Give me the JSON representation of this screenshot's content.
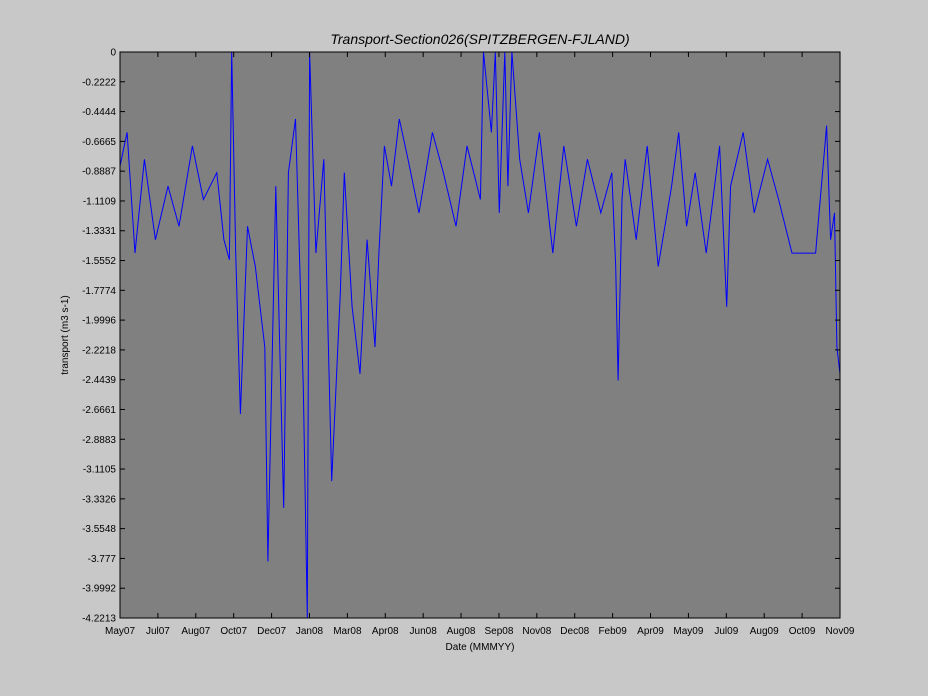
{
  "chart_data": {
    "type": "line",
    "title": "Transport-Section026(SPITZBERGEN-FJLAND)",
    "xlabel": "Date (MMMYY)",
    "ylabel": "transport (m3 s-1)",
    "ylim": [
      -4.2213,
      0
    ],
    "yticks": [
      "0",
      "-0.2222",
      "-0.4444",
      "-0.6665",
      "-0.8887",
      "-1.1109",
      "-1.3331",
      "-1.5552",
      "-1.7774",
      "-1.9996",
      "-2.2218",
      "-2.4439",
      "-2.6661",
      "-2.8883",
      "-3.1105",
      "-3.3326",
      "-3.5548",
      "-3.777",
      "-3.9992",
      "-4.2213"
    ],
    "xlim": [
      "2007-05-01",
      "2009-11-01"
    ],
    "xticks": [
      "May07",
      "Jul07",
      "Aug07",
      "Oct07",
      "Dec07",
      "Jan08",
      "Mar08",
      "Apr08",
      "Jun08",
      "Aug08",
      "Sep08",
      "Nov08",
      "Dec08",
      "Feb09",
      "Apr09",
      "May09",
      "Jul09",
      "Aug09",
      "Oct09",
      "Nov09"
    ],
    "grid": false,
    "series": [
      {
        "color": "#0000ff",
        "x": [
          "2007-05-01",
          "2007-05-10",
          "2007-05-20",
          "2007-06-01",
          "2007-06-15",
          "2007-07-01",
          "2007-07-15",
          "2007-08-01",
          "2007-08-15",
          "2007-09-01",
          "2007-09-10",
          "2007-09-17",
          "2007-09-20",
          "2007-09-25",
          "2007-10-01",
          "2007-10-10",
          "2007-10-20",
          "2007-11-01",
          "2007-11-05",
          "2007-11-15",
          "2007-11-25",
          "2007-12-01",
          "2007-12-10",
          "2007-12-20",
          "2007-12-25",
          "2007-12-28",
          "2008-01-05",
          "2008-01-15",
          "2008-01-25",
          "2008-02-05",
          "2008-02-10",
          "2008-02-20",
          "2008-03-01",
          "2008-03-10",
          "2008-03-20",
          "2008-03-25",
          "2008-04-01",
          "2008-04-10",
          "2008-04-20",
          "2008-05-01",
          "2008-05-15",
          "2008-06-01",
          "2008-06-15",
          "2008-07-01",
          "2008-07-15",
          "2008-08-01",
          "2008-08-05",
          "2008-08-15",
          "2008-08-20",
          "2008-08-25",
          "2008-09-01",
          "2008-09-05",
          "2008-09-10",
          "2008-09-20",
          "2008-10-01",
          "2008-10-15",
          "2008-11-01",
          "2008-11-15",
          "2008-12-01",
          "2008-12-15",
          "2009-01-01",
          "2009-01-15",
          "2009-01-20",
          "2009-01-23",
          "2009-01-28",
          "2009-02-01",
          "2009-02-15",
          "2009-03-01",
          "2009-03-15",
          "2009-04-01",
          "2009-04-10",
          "2009-04-20",
          "2009-05-01",
          "2009-05-15",
          "2009-06-01",
          "2009-06-10",
          "2009-06-15",
          "2009-07-01",
          "2009-07-15",
          "2009-08-01",
          "2009-08-15",
          "2009-09-01",
          "2009-09-10",
          "2009-09-15",
          "2009-10-01",
          "2009-10-15",
          "2009-10-20",
          "2009-10-25",
          "2009-10-28",
          "2009-11-01"
        ],
        "values": [
          -0.85,
          -0.6,
          -1.5,
          -0.8,
          -1.4,
          -1.0,
          -1.3,
          -0.7,
          -1.1,
          -0.9,
          -1.4,
          -1.55,
          0,
          -1.5,
          -2.7,
          -1.3,
          -1.6,
          -2.2,
          -3.8,
          -1.0,
          -3.4,
          -0.9,
          -0.5,
          -2.5,
          -4.2213,
          0,
          -1.5,
          -0.8,
          -3.2,
          -1.8,
          -0.9,
          -1.9,
          -2.4,
          -1.4,
          -2.2,
          -1.5,
          -0.7,
          -1.0,
          -0.5,
          -0.8,
          -1.2,
          -0.6,
          -0.9,
          -1.3,
          -0.7,
          -1.1,
          0,
          -0.6,
          0,
          -1.2,
          0,
          -1.0,
          0,
          -0.8,
          -1.2,
          -0.6,
          -1.5,
          -0.7,
          -1.3,
          -0.8,
          -1.2,
          -0.9,
          -1.6,
          -2.45,
          -1.1,
          -0.8,
          -1.4,
          -0.7,
          -1.6,
          -1.0,
          -0.6,
          -1.3,
          -0.9,
          -1.5,
          -0.7,
          -1.9,
          -1.0,
          -0.6,
          -1.2,
          -0.8,
          -1.1,
          -1.5,
          -1.5,
          -1.5,
          -1.5,
          -0.55,
          -1.4,
          -1.2,
          -2.2,
          -2.4
        ]
      }
    ]
  }
}
